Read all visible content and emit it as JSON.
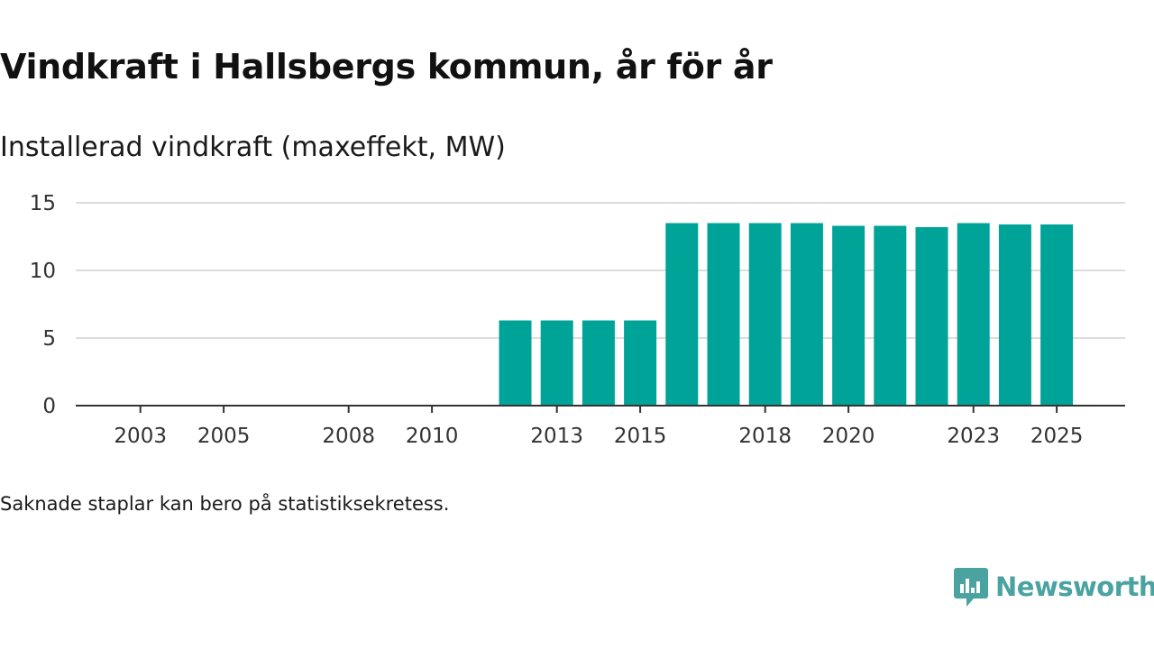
{
  "header": {
    "title": "Vindkraft i Hallsbergs kommun, år för år",
    "subtitle": "Installerad vindkraft (maxeffekt, MW)"
  },
  "footer": {
    "note": "Saknade staplar kan bero på statistiksekretess.",
    "brand": "Newsworthy"
  },
  "colors": {
    "bar": "#00a398",
    "grid": "#dddddd",
    "axis": "#333333",
    "brand": "#4aa3a0"
  },
  "chart_data": {
    "type": "bar",
    "title": "Vindkraft i Hallsbergs kommun, år för år",
    "ylabel": "Installerad vindkraft (maxeffekt, MW)",
    "xlabel": "",
    "categories": [
      "2002",
      "2003",
      "2004",
      "2005",
      "2006",
      "2007",
      "2008",
      "2009",
      "2010",
      "2011",
      "2012",
      "2013",
      "2014",
      "2015",
      "2016",
      "2017",
      "2018",
      "2019",
      "2020",
      "2021",
      "2022",
      "2023",
      "2024",
      "2025"
    ],
    "values": [
      0,
      0,
      0,
      0,
      0,
      0,
      0,
      0,
      0,
      0,
      6.3,
      6.3,
      6.3,
      6.3,
      13.5,
      13.5,
      13.5,
      13.5,
      13.3,
      13.3,
      13.2,
      13.5,
      13.4,
      13.4
    ],
    "xticks": [
      "2003",
      "2005",
      "2008",
      "2010",
      "2013",
      "2015",
      "2018",
      "2020",
      "2023",
      "2025"
    ],
    "yticks": [
      0,
      5,
      10,
      15
    ],
    "ylim": [
      0,
      15
    ],
    "grid": true
  }
}
